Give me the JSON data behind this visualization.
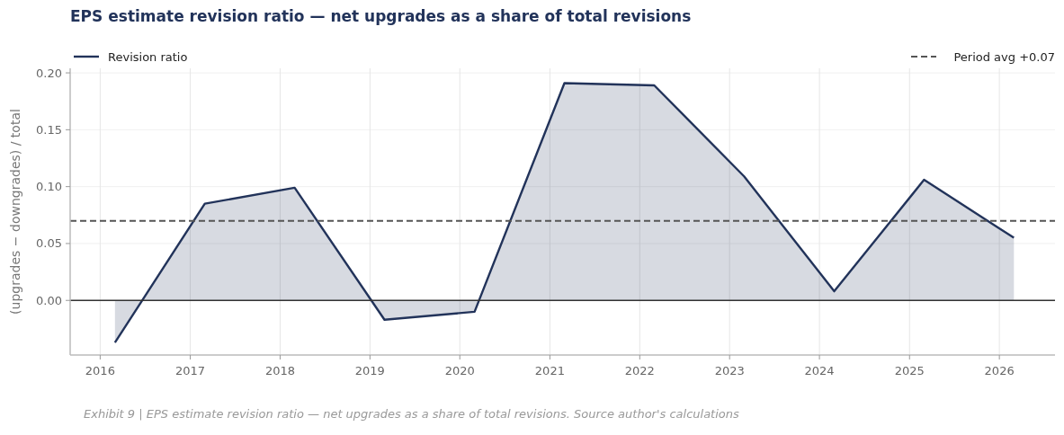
{
  "chart_data": {
    "type": "area",
    "title": "EPS estimate revision ratio — net upgrades as a share of total revisions",
    "ylabel": "(upgrades − downgrades) / total",
    "x": [
      "2016-03-01",
      "2017-03-01",
      "2018-03-01",
      "2019-03-01",
      "2020-03-01",
      "2021-03-01",
      "2022-03-01",
      "2023-03-01",
      "2024-03-01",
      "2025-03-01",
      "2026-03-01"
    ],
    "series": [
      {
        "name": "Revision ratio",
        "color": "#22335a",
        "values": [
          -0.037,
          0.085,
          0.099,
          -0.017,
          -0.01,
          0.191,
          0.189,
          0.109,
          0.008,
          0.106,
          0.055
        ]
      }
    ],
    "xlim": [
      "2015-09-01",
      "2026-08-15"
    ],
    "xticks": [
      {
        "value": "2016-01-01",
        "label": "2016"
      },
      {
        "value": "2017-01-01",
        "label": "2017"
      },
      {
        "value": "2018-01-01",
        "label": "2018"
      },
      {
        "value": "2019-01-01",
        "label": "2019"
      },
      {
        "value": "2020-01-01",
        "label": "2020"
      },
      {
        "value": "2021-01-01",
        "label": "2021"
      },
      {
        "value": "2022-01-01",
        "label": "2022"
      },
      {
        "value": "2023-01-01",
        "label": "2023"
      },
      {
        "value": "2024-01-01",
        "label": "2024"
      },
      {
        "value": "2025-01-01",
        "label": "2025"
      },
      {
        "value": "2026-01-01",
        "label": "2026"
      }
    ],
    "ylim": [
      -0.048,
      0.204
    ],
    "yticks": [
      {
        "value": 0,
        "label": "0.00"
      },
      {
        "value": 0.05,
        "label": "0.05"
      },
      {
        "value": 0.1,
        "label": "0.10"
      },
      {
        "value": 0.15,
        "label": "0.15"
      },
      {
        "value": 0.2,
        "label": "0.20"
      }
    ],
    "ref_lines": [
      {
        "axis": "y",
        "value": 0.07,
        "label": "Period avg +0.07",
        "color": "#555555",
        "line_style": "dashed"
      },
      {
        "axis": "y",
        "value": 0,
        "color": "#333333",
        "line_style": "solid"
      }
    ],
    "grid": true,
    "legend": "top",
    "line_style": "solid",
    "marker": "none",
    "annotations": [
      "Exhibit 9 | EPS estimate revision ratio — net upgrades as a share of total revisions. Source author's calculations"
    ]
  }
}
